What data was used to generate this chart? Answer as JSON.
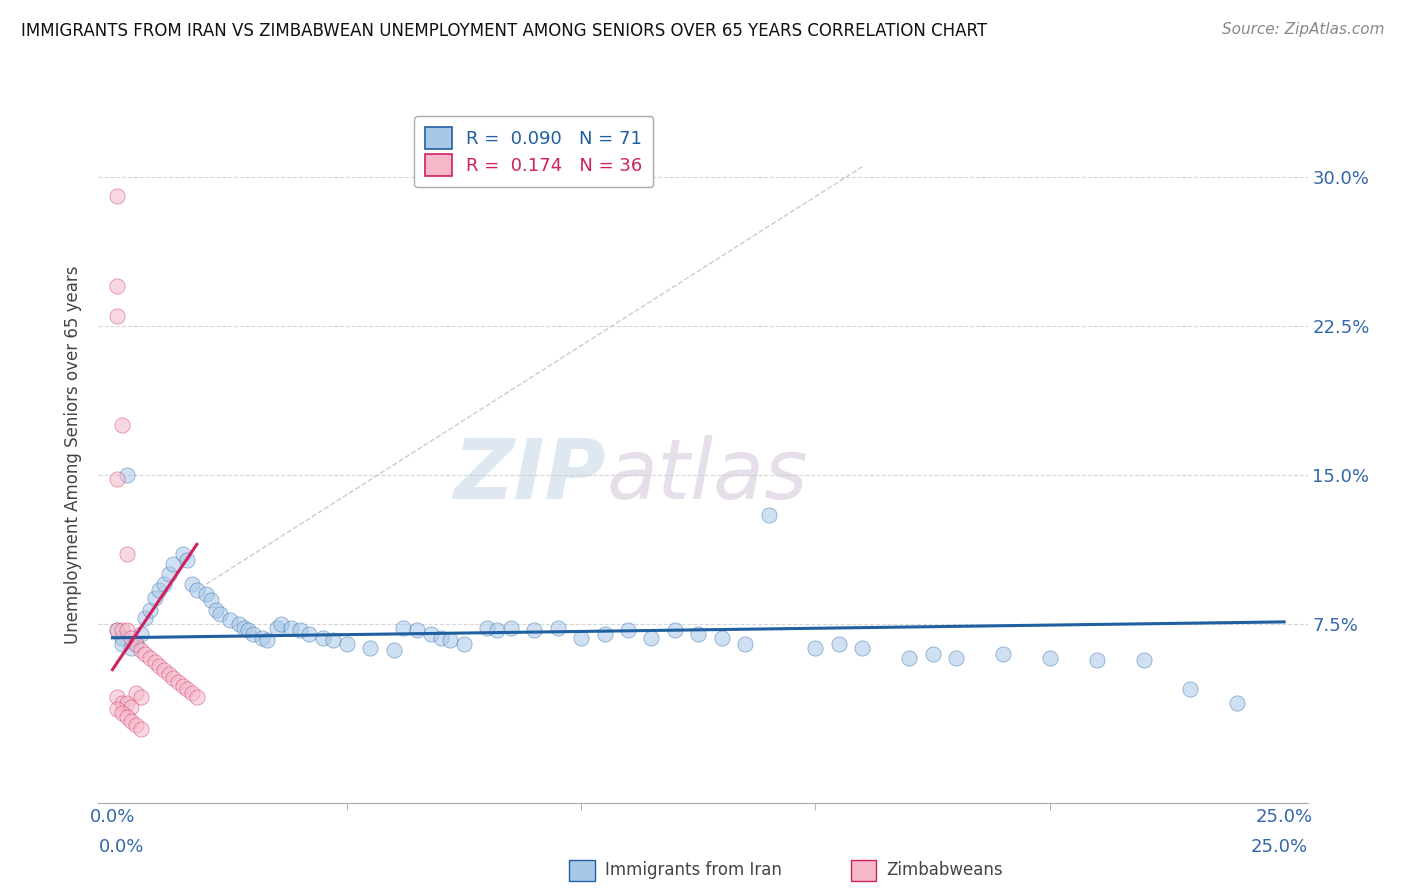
{
  "title": "IMMIGRANTS FROM IRAN VS ZIMBABWEAN UNEMPLOYMENT AMONG SENIORS OVER 65 YEARS CORRELATION CHART",
  "source": "Source: ZipAtlas.com",
  "ylabel_label": "Unemployment Among Seniors over 65 years",
  "y_tick_labels": [
    "7.5%",
    "15.0%",
    "22.5%",
    "30.0%"
  ],
  "y_tick_values": [
    0.075,
    0.15,
    0.225,
    0.3
  ],
  "x_tick_labels": [
    "0.0%",
    "25.0%"
  ],
  "x_tick_values": [
    0.0,
    0.25
  ],
  "xlim": [
    -0.003,
    0.255
  ],
  "ylim": [
    -0.015,
    0.335
  ],
  "legend_entries": [
    {
      "label": "R =  0.090   N = 71",
      "color": "#a8c8e8"
    },
    {
      "label": "R =  0.174   N = 36",
      "color": "#f4b8c8"
    }
  ],
  "blue_scatter": [
    [
      0.001,
      0.072
    ],
    [
      0.002,
      0.068
    ],
    [
      0.003,
      0.15
    ],
    [
      0.005,
      0.065
    ],
    [
      0.006,
      0.07
    ],
    [
      0.007,
      0.078
    ],
    [
      0.008,
      0.082
    ],
    [
      0.009,
      0.088
    ],
    [
      0.01,
      0.092
    ],
    [
      0.011,
      0.095
    ],
    [
      0.012,
      0.1
    ],
    [
      0.013,
      0.105
    ],
    [
      0.015,
      0.11
    ],
    [
      0.016,
      0.107
    ],
    [
      0.017,
      0.095
    ],
    [
      0.018,
      0.092
    ],
    [
      0.02,
      0.09
    ],
    [
      0.021,
      0.087
    ],
    [
      0.022,
      0.082
    ],
    [
      0.023,
      0.08
    ],
    [
      0.025,
      0.077
    ],
    [
      0.027,
      0.075
    ],
    [
      0.028,
      0.073
    ],
    [
      0.029,
      0.072
    ],
    [
      0.03,
      0.07
    ],
    [
      0.032,
      0.068
    ],
    [
      0.033,
      0.067
    ],
    [
      0.035,
      0.073
    ],
    [
      0.036,
      0.075
    ],
    [
      0.038,
      0.073
    ],
    [
      0.04,
      0.072
    ],
    [
      0.042,
      0.07
    ],
    [
      0.045,
      0.068
    ],
    [
      0.047,
      0.067
    ],
    [
      0.05,
      0.065
    ],
    [
      0.055,
      0.063
    ],
    [
      0.06,
      0.062
    ],
    [
      0.062,
      0.073
    ],
    [
      0.065,
      0.072
    ],
    [
      0.068,
      0.07
    ],
    [
      0.07,
      0.068
    ],
    [
      0.072,
      0.067
    ],
    [
      0.075,
      0.065
    ],
    [
      0.08,
      0.073
    ],
    [
      0.082,
      0.072
    ],
    [
      0.085,
      0.073
    ],
    [
      0.09,
      0.072
    ],
    [
      0.095,
      0.073
    ],
    [
      0.1,
      0.068
    ],
    [
      0.105,
      0.07
    ],
    [
      0.11,
      0.072
    ],
    [
      0.115,
      0.068
    ],
    [
      0.12,
      0.072
    ],
    [
      0.125,
      0.07
    ],
    [
      0.13,
      0.068
    ],
    [
      0.135,
      0.065
    ],
    [
      0.14,
      0.13
    ],
    [
      0.15,
      0.063
    ],
    [
      0.155,
      0.065
    ],
    [
      0.16,
      0.063
    ],
    [
      0.17,
      0.058
    ],
    [
      0.175,
      0.06
    ],
    [
      0.18,
      0.058
    ],
    [
      0.19,
      0.06
    ],
    [
      0.2,
      0.058
    ],
    [
      0.21,
      0.057
    ],
    [
      0.22,
      0.057
    ],
    [
      0.23,
      0.042
    ],
    [
      0.24,
      0.035
    ],
    [
      0.002,
      0.065
    ],
    [
      0.004,
      0.063
    ]
  ],
  "pink_scatter": [
    [
      0.001,
      0.29
    ],
    [
      0.001,
      0.245
    ],
    [
      0.001,
      0.23
    ],
    [
      0.002,
      0.175
    ],
    [
      0.001,
      0.148
    ],
    [
      0.003,
      0.11
    ],
    [
      0.001,
      0.072
    ],
    [
      0.002,
      0.072
    ],
    [
      0.003,
      0.072
    ],
    [
      0.004,
      0.068
    ],
    [
      0.005,
      0.065
    ],
    [
      0.006,
      0.062
    ],
    [
      0.007,
      0.06
    ],
    [
      0.008,
      0.058
    ],
    [
      0.009,
      0.056
    ],
    [
      0.01,
      0.054
    ],
    [
      0.011,
      0.052
    ],
    [
      0.012,
      0.05
    ],
    [
      0.013,
      0.048
    ],
    [
      0.014,
      0.046
    ],
    [
      0.015,
      0.044
    ],
    [
      0.016,
      0.042
    ],
    [
      0.017,
      0.04
    ],
    [
      0.018,
      0.038
    ],
    [
      0.001,
      0.038
    ],
    [
      0.002,
      0.035
    ],
    [
      0.003,
      0.035
    ],
    [
      0.004,
      0.033
    ],
    [
      0.001,
      0.032
    ],
    [
      0.002,
      0.03
    ],
    [
      0.003,
      0.028
    ],
    [
      0.004,
      0.026
    ],
    [
      0.005,
      0.024
    ],
    [
      0.006,
      0.022
    ],
    [
      0.005,
      0.04
    ],
    [
      0.006,
      0.038
    ]
  ],
  "blue_line": [
    [
      0.0,
      0.068
    ],
    [
      0.25,
      0.076
    ]
  ],
  "pink_line": [
    [
      0.0,
      0.052
    ],
    [
      0.018,
      0.115
    ]
  ],
  "diag_line": [
    [
      0.02,
      0.095
    ],
    [
      0.16,
      0.305
    ]
  ],
  "watermark_zip": "ZIP",
  "watermark_atlas": "atlas",
  "dot_size": 120,
  "dot_alpha": 0.55,
  "blue_color": "#a8c8e8",
  "pink_color": "#f4b8c8",
  "blue_line_color": "#2060a0",
  "pink_line_color": "#d02060",
  "grid_color": "#cccccc",
  "background_color": "#ffffff"
}
